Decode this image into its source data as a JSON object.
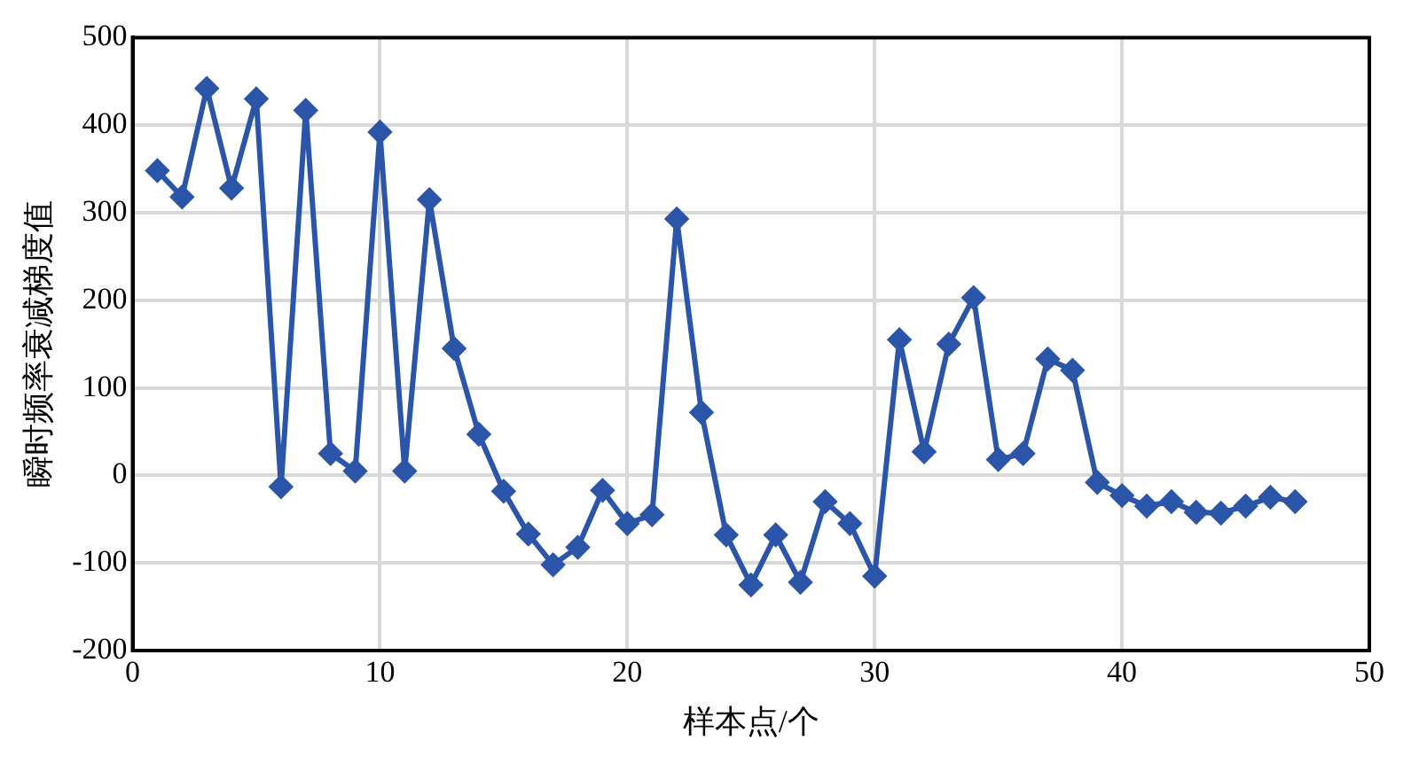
{
  "chart_data": {
    "type": "line",
    "xlabel": "样本点/个",
    "ylabel": "瞬时频率衰减梯度值",
    "x": [
      1,
      2,
      3,
      4,
      5,
      6,
      7,
      8,
      9,
      10,
      11,
      12,
      13,
      14,
      15,
      16,
      17,
      18,
      19,
      20,
      21,
      22,
      23,
      24,
      25,
      26,
      27,
      28,
      29,
      30,
      31,
      32,
      33,
      34,
      35,
      36,
      37,
      38,
      39,
      40,
      41,
      42,
      43,
      44,
      45,
      46,
      47
    ],
    "series": [
      {
        "color": "#2b55a8",
        "values": [
          348,
          318,
          442,
          328,
          430,
          -13,
          417,
          25,
          5,
          392,
          5,
          315,
          145,
          47,
          -18,
          -67,
          -102,
          -82,
          -17,
          -55,
          -45,
          293,
          72,
          -68,
          -125,
          -68,
          -122,
          -30,
          -55,
          -115,
          155,
          27,
          150,
          203,
          18,
          25,
          133,
          120,
          -8,
          -23,
          -35,
          -30,
          -42,
          -43,
          -35,
          -25,
          -30
        ]
      }
    ],
    "xlim": [
      0,
      50
    ],
    "xticks": [
      0,
      10,
      20,
      30,
      40,
      50
    ],
    "ylim": [
      -200,
      500
    ],
    "yticks": [
      -200,
      -100,
      0,
      100,
      200,
      300,
      400,
      500
    ],
    "grid": true,
    "marker": "diamond",
    "line_style": "solid",
    "legend": false
  }
}
